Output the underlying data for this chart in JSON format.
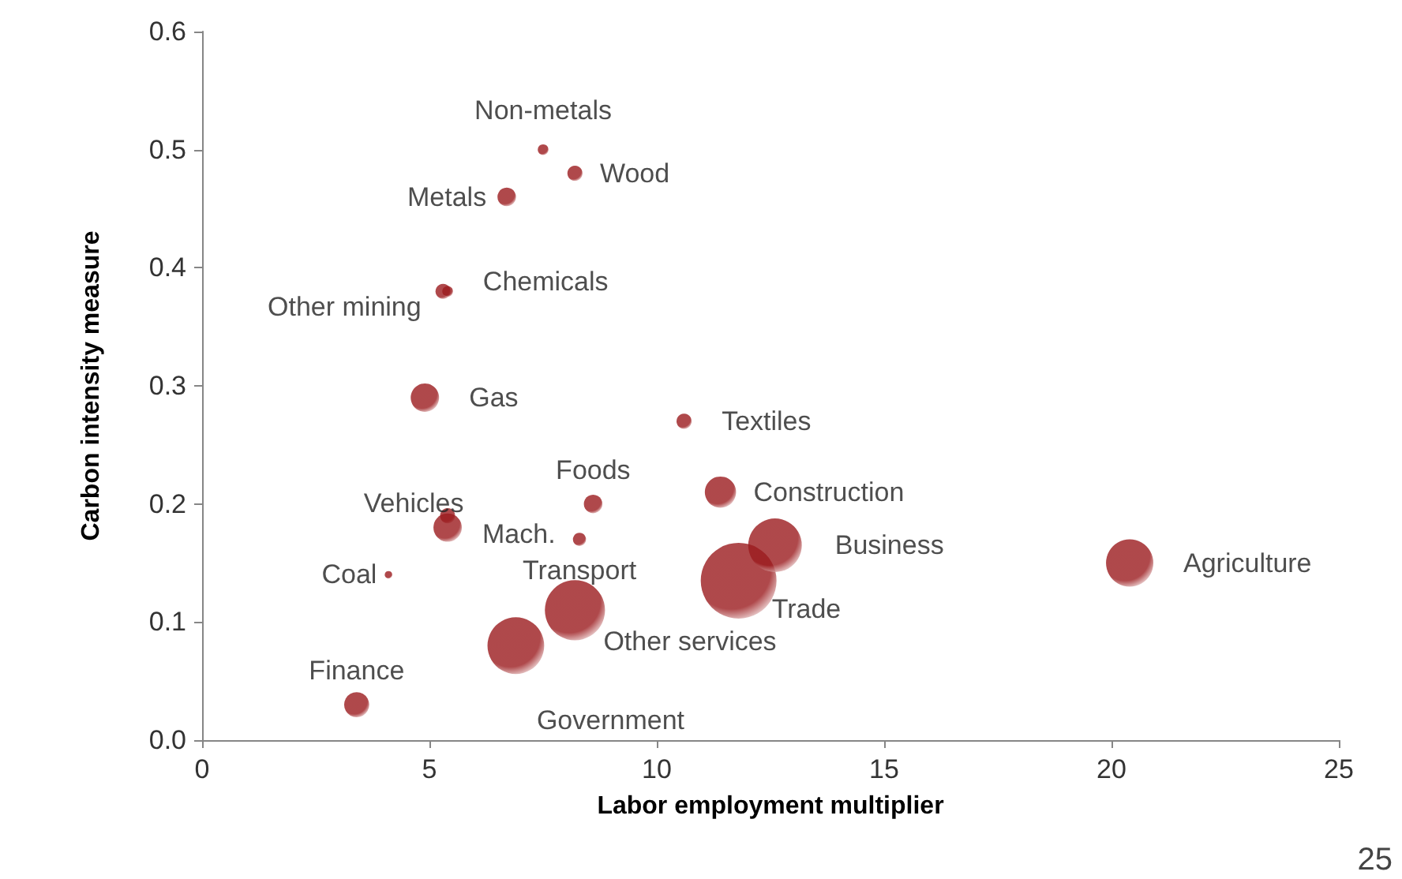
{
  "chart_data": {
    "type": "bubble",
    "xlabel": "Labor employment multiplier",
    "ylabel": "Carbon intensity measure",
    "xlim": [
      0,
      25
    ],
    "xticks": [
      0,
      5,
      10,
      15,
      20,
      25
    ],
    "ylim": [
      0,
      0.6
    ],
    "yticks": [
      {
        "value": 0,
        "label": "0.0"
      },
      {
        "value": 0.1,
        "label": "0.1"
      },
      {
        "value": 0.2,
        "label": "0.2"
      },
      {
        "value": 0.3,
        "label": "0.3"
      },
      {
        "value": 0.4,
        "label": "0.4"
      },
      {
        "value": 0.5,
        "label": "0.5"
      },
      {
        "value": 0.6,
        "label": "0.6"
      }
    ],
    "grid": false,
    "legend": false,
    "annotations": [
      "25"
    ],
    "series": [
      {
        "name": "Non-metals",
        "color": "#9b1b1e",
        "x": [
          7.5
        ],
        "values": [
          0.5
        ],
        "sizes": [
          0.02
        ]
      },
      {
        "name": "Wood",
        "color": "#9b1b1e",
        "x": [
          8.2
        ],
        "values": [
          0.48
        ],
        "sizes": [
          0.04
        ]
      },
      {
        "name": "Metals",
        "color": "#9b1b1e",
        "x": [
          6.7
        ],
        "values": [
          0.46
        ],
        "sizes": [
          0.06
        ]
      },
      {
        "name": "Other mining",
        "color": "#9b1b1e",
        "x": [
          5.3
        ],
        "values": [
          0.38
        ],
        "sizes": [
          0.04
        ]
      },
      {
        "name": "Chemicals",
        "color": "#9b1b1e",
        "x": [
          5.4
        ],
        "values": [
          0.38
        ],
        "sizes": [
          0.02
        ]
      },
      {
        "name": "Gas",
        "color": "#9b1b1e",
        "x": [
          4.9
        ],
        "values": [
          0.29
        ],
        "sizes": [
          0.14
        ]
      },
      {
        "name": "Textiles",
        "color": "#9b1b1e",
        "x": [
          10.6
        ],
        "values": [
          0.27
        ],
        "sizes": [
          0.04
        ]
      },
      {
        "name": "Foods",
        "color": "#9b1b1e",
        "x": [
          8.6
        ],
        "values": [
          0.2
        ],
        "sizes": [
          0.06
        ]
      },
      {
        "name": "Construction",
        "color": "#9b1b1e",
        "x": [
          11.4
        ],
        "values": [
          0.21
        ],
        "sizes": [
          0.17
        ]
      },
      {
        "name": "Vehicles",
        "color": "#9b1b1e",
        "x": [
          5.4
        ],
        "values": [
          0.19
        ],
        "sizes": [
          0.04
        ]
      },
      {
        "name": "Mach.",
        "color": "#9b1b1e",
        "x": [
          5.4
        ],
        "values": [
          0.18
        ],
        "sizes": [
          0.14
        ]
      },
      {
        "name": "Coal",
        "color": "#9b1b1e",
        "x": [
          4.1
        ],
        "values": [
          0.14
        ],
        "sizes": [
          0.01
        ]
      },
      {
        "name": "Transport",
        "color": "#9b1b1e",
        "x": [
          8.3
        ],
        "values": [
          0.17
        ],
        "sizes": [
          0.03
        ]
      },
      {
        "name": "Other services",
        "color": "#9b1b1e",
        "x": [
          8.2
        ],
        "values": [
          0.11
        ],
        "sizes": [
          0.63
        ]
      },
      {
        "name": "Government",
        "color": "#9b1b1e",
        "x": [
          6.9
        ],
        "values": [
          0.08
        ],
        "sizes": [
          0.56
        ]
      },
      {
        "name": "Finance",
        "color": "#9b1b1e",
        "x": [
          3.4
        ],
        "values": [
          0.03
        ],
        "sizes": [
          0.11
        ]
      },
      {
        "name": "Trade",
        "color": "#9b1b1e",
        "x": [
          11.8
        ],
        "values": [
          0.135
        ],
        "sizes": [
          1
        ]
      },
      {
        "name": "Business",
        "color": "#9b1b1e",
        "x": [
          12.6
        ],
        "values": [
          0.165
        ],
        "sizes": [
          0.5
        ]
      },
      {
        "name": "Agriculture",
        "color": "#9b1b1e",
        "x": [
          20.4
        ],
        "values": [
          0.15
        ],
        "sizes": [
          0.39
        ]
      }
    ]
  }
}
